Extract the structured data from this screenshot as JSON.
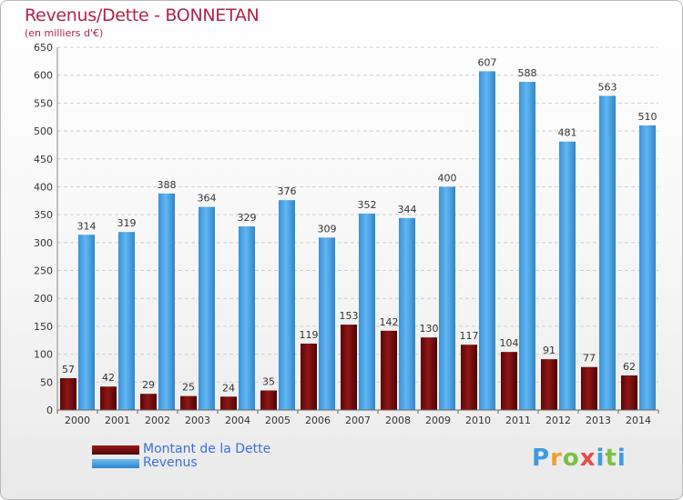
{
  "title": "Revenus/Dette - BONNETAN",
  "subtitle": "(en milliers d'€)",
  "legend": {
    "items": [
      {
        "label": "Montant de la Dette",
        "color": "#7a0a0a"
      },
      {
        "label": "Revenus",
        "color": "#4aa3e8"
      }
    ]
  },
  "logo": {
    "text": "Proxiti",
    "letters": [
      "P",
      "r",
      "o",
      "x",
      "i",
      "t",
      "i"
    ]
  },
  "colors": {
    "title": "#b0234a",
    "debt": "#7a0a0a",
    "revenue": "#4aa3e8",
    "legend_text": "#3a6fe0"
  },
  "chart_data": {
    "type": "bar",
    "categories": [
      "2000",
      "2001",
      "2002",
      "2003",
      "2004",
      "2005",
      "2006",
      "2007",
      "2008",
      "2009",
      "2010",
      "2011",
      "2012",
      "2013",
      "2014"
    ],
    "series": [
      {
        "name": "Montant de la Dette",
        "values": [
          57,
          42,
          29,
          25,
          24,
          35,
          119,
          153,
          142,
          130,
          117,
          104,
          91,
          77,
          62
        ]
      },
      {
        "name": "Revenus",
        "values": [
          314,
          319,
          388,
          364,
          329,
          376,
          309,
          352,
          344,
          400,
          607,
          588,
          481,
          563,
          510
        ]
      }
    ],
    "title": "Revenus/Dette - BONNETAN",
    "subtitle": "(en milliers d'€)",
    "ylim": [
      0,
      650
    ],
    "yticks": [
      0,
      50,
      100,
      150,
      200,
      250,
      300,
      350,
      400,
      450,
      500,
      550,
      600,
      650
    ],
    "grid": true,
    "legend_position": "bottom-left"
  }
}
